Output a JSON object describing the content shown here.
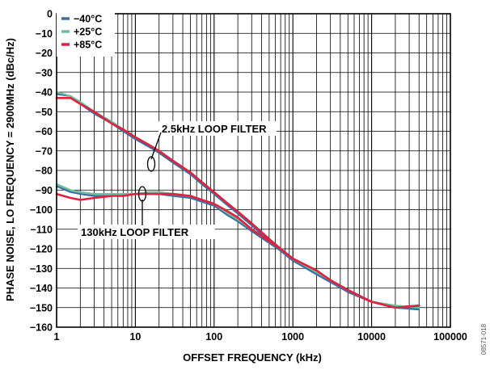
{
  "chart_data": {
    "type": "line",
    "xlabel": "OFFSET FREQUENCY (kHz)",
    "ylabel": "PHASE NOISE, LO FREQUENCY = 2900MHz (dBc/Hz)",
    "xscale": "log",
    "xlim": [
      1,
      100000
    ],
    "ylim": [
      -160,
      0
    ],
    "grid": true,
    "legend_position": "top-left",
    "x_tick_labels": [
      "1",
      "10",
      "100",
      "1000",
      "10000",
      "100000"
    ],
    "y_tick_labels": [
      "0",
      "−10",
      "−20",
      "−30",
      "−40",
      "−50",
      "−60",
      "−70",
      "−80",
      "−90",
      "−100",
      "−110",
      "−120",
      "−130",
      "−140",
      "−150",
      "−160"
    ],
    "annotations": [
      "2.5kHz LOOP FILTER",
      "130kHz LOOP FILTER"
    ],
    "figure_id": "08571-018",
    "series": [
      {
        "name": "−40°C",
        "color": "#3d6e9e",
        "group": "2.5kHz LOOP FILTER",
        "x": [
          1,
          1.5,
          2,
          3,
          5,
          7,
          10,
          15,
          20,
          30,
          50,
          70,
          100,
          150,
          200,
          300,
          500,
          700,
          1000,
          2000,
          3000,
          5000,
          10000,
          20000,
          40000
        ],
        "y": [
          -41,
          -42,
          -46,
          -51,
          -56,
          -60,
          -64,
          -68,
          -71,
          -76,
          -82,
          -87,
          -92,
          -98,
          -102,
          -108,
          -116,
          -121,
          -126,
          -133,
          -137,
          -142,
          -147,
          -150,
          -150
        ]
      },
      {
        "name": "+25°C",
        "color": "#6bbf9c",
        "group": "2.5kHz LOOP FILTER",
        "x": [
          1,
          1.5,
          2,
          3,
          5,
          7,
          10,
          15,
          20,
          30,
          50,
          70,
          100,
          150,
          200,
          300,
          500,
          700,
          1000,
          2000,
          3000,
          5000,
          10000,
          20000,
          40000
        ],
        "y": [
          -40,
          -42,
          -45,
          -50,
          -55,
          -59,
          -63,
          -67,
          -70,
          -75,
          -81,
          -86,
          -91,
          -97,
          -101,
          -107,
          -115,
          -120,
          -125,
          -132,
          -136,
          -142,
          -147,
          -149,
          -150
        ]
      },
      {
        "name": "+85°C",
        "color": "#e0213f",
        "group": "2.5kHz LOOP FILTER",
        "x": [
          1,
          1.5,
          2,
          3,
          5,
          7,
          10,
          15,
          20,
          30,
          50,
          70,
          100,
          150,
          200,
          300,
          500,
          700,
          1000,
          2000,
          3000,
          5000,
          10000,
          20000,
          40000
        ],
        "y": [
          -43,
          -43,
          -46,
          -50,
          -56,
          -59,
          -63,
          -67,
          -70,
          -75,
          -81,
          -86,
          -91,
          -97,
          -101,
          -107,
          -115,
          -120,
          -125,
          -132,
          -136,
          -142,
          -147,
          -150,
          -149
        ]
      },
      {
        "name": "−40°C",
        "color": "#3d6e9e",
        "group": "130kHz LOOP FILTER",
        "x": [
          1,
          1.5,
          2,
          3,
          5,
          7,
          10,
          15,
          20,
          30,
          50,
          70,
          100,
          150,
          200,
          300,
          500,
          700,
          1000,
          2000,
          3000,
          5000,
          10000,
          20000,
          40000
        ],
        "y": [
          -88,
          -91,
          -92,
          -93,
          -93,
          -93,
          -92,
          -92,
          -92,
          -93,
          -94,
          -96,
          -98,
          -103,
          -106,
          -111,
          -117,
          -121,
          -126,
          -133,
          -137,
          -142,
          -147,
          -150,
          -151
        ]
      },
      {
        "name": "+25°C",
        "color": "#6bbf9c",
        "group": "130kHz LOOP FILTER",
        "x": [
          1,
          1.5,
          2,
          3,
          5,
          7,
          10,
          15,
          20,
          30,
          50,
          70,
          100,
          150,
          200,
          300,
          500,
          700,
          1000,
          2000,
          3000,
          5000,
          10000,
          20000,
          40000
        ],
        "y": [
          -87,
          -90,
          -91,
          -92,
          -92,
          -92,
          -92,
          -91,
          -91,
          -92,
          -93,
          -95,
          -97,
          -102,
          -105,
          -110,
          -116,
          -120,
          -125,
          -132,
          -136,
          -141,
          -147,
          -149,
          -150
        ]
      },
      {
        "name": "+85°C",
        "color": "#e0213f",
        "group": "130kHz LOOP FILTER",
        "x": [
          1,
          1.5,
          2,
          3,
          5,
          7,
          10,
          15,
          20,
          30,
          50,
          70,
          100,
          150,
          200,
          300,
          500,
          700,
          1000,
          2000,
          3000,
          5000,
          10000,
          20000,
          40000
        ],
        "y": [
          -92,
          -94,
          -95,
          -94,
          -93,
          -93,
          -92,
          -92,
          -92,
          -92,
          -93,
          -95,
          -97,
          -101,
          -104,
          -110,
          -116,
          -120,
          -125,
          -131,
          -136,
          -141,
          -147,
          -150,
          -149
        ]
      }
    ]
  },
  "legend": [
    {
      "label": "−40°C",
      "color": "#3d6e9e"
    },
    {
      "label": "+25°C",
      "color": "#6bbf9c"
    },
    {
      "label": "+85°C",
      "color": "#e0213f"
    }
  ]
}
